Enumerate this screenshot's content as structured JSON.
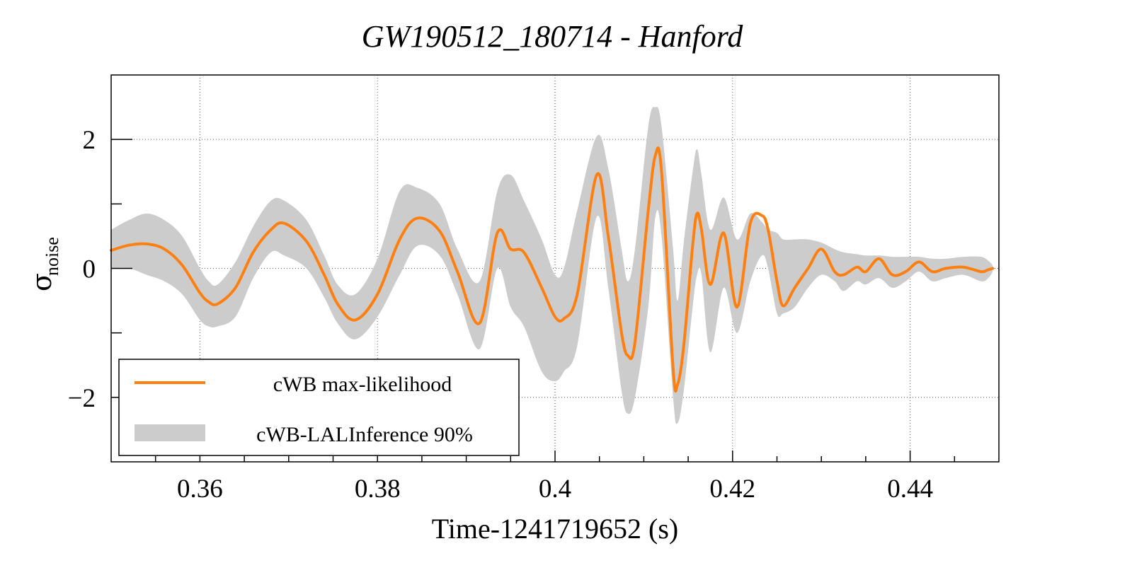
{
  "chart_data": {
    "type": "line",
    "title": "GW190512_180714 - Hanford",
    "xlabel": "Time-1241719652 (s)",
    "ylabel": "σ",
    "ylabel_sub": "noise",
    "xlim": [
      0.35,
      0.45
    ],
    "ylim": [
      -3,
      3
    ],
    "xticks": [
      0.36,
      0.38,
      0.4,
      0.42,
      0.44
    ],
    "xtick_labels": [
      "0.36",
      "0.38",
      "0.4",
      "0.42",
      "0.44"
    ],
    "yticks": [
      -2,
      0,
      2
    ],
    "ytick_labels": [
      "−2",
      "0",
      "2"
    ],
    "grid": true,
    "legend_position": "bottom-left",
    "colors": {
      "line": "#ff8010",
      "band": "#cccccc"
    },
    "series": [
      {
        "name": "cWB max-likelihood",
        "x": [
          0.35,
          0.352,
          0.354,
          0.356,
          0.358,
          0.36,
          0.361,
          0.362,
          0.364,
          0.366,
          0.368,
          0.3695,
          0.372,
          0.374,
          0.3755,
          0.3775,
          0.38,
          0.3825,
          0.3845,
          0.387,
          0.389,
          0.3915,
          0.3935,
          0.395,
          0.3965,
          0.3985,
          0.4,
          0.401,
          0.4025,
          0.4047,
          0.406,
          0.4075,
          0.4082,
          0.409,
          0.4105,
          0.4113,
          0.412,
          0.4133,
          0.4138,
          0.4145,
          0.4155,
          0.416,
          0.4165,
          0.4175,
          0.419,
          0.4205,
          0.422,
          0.4233,
          0.424,
          0.425,
          0.4257,
          0.427,
          0.4285,
          0.43,
          0.4315,
          0.4325,
          0.434,
          0.435,
          0.4365,
          0.438,
          0.4395,
          0.441,
          0.4425,
          0.444,
          0.446,
          0.448,
          0.4488,
          0.4493
        ],
        "values": [
          0.28,
          0.36,
          0.38,
          0.3,
          0.05,
          -0.38,
          -0.52,
          -0.55,
          -0.3,
          0.25,
          0.6,
          0.7,
          0.42,
          -0.1,
          -0.55,
          -0.8,
          -0.4,
          0.45,
          0.78,
          0.58,
          -0.05,
          -0.85,
          0.55,
          0.3,
          0.25,
          -0.3,
          -0.75,
          -0.78,
          -0.4,
          1.45,
          0.5,
          -1.0,
          -1.35,
          -1.15,
          0.9,
          1.75,
          1.5,
          -1.55,
          -1.8,
          -1.2,
          0.35,
          0.85,
          0.6,
          -0.25,
          0.55,
          -0.6,
          0.7,
          0.82,
          0.6,
          -0.2,
          -0.58,
          -0.3,
          0.0,
          0.3,
          -0.05,
          -0.1,
          0.02,
          -0.05,
          0.15,
          -0.1,
          -0.05,
          0.1,
          -0.05,
          0.0,
          0.02,
          -0.05,
          -0.02,
          0.0
        ]
      },
      {
        "name": "cWB-LALInference 90%",
        "type": "band",
        "x": [
          0.35,
          0.352,
          0.354,
          0.356,
          0.358,
          0.36,
          0.361,
          0.362,
          0.364,
          0.366,
          0.368,
          0.3695,
          0.372,
          0.374,
          0.3755,
          0.3775,
          0.38,
          0.3825,
          0.3845,
          0.387,
          0.389,
          0.3915,
          0.3935,
          0.395,
          0.3965,
          0.3985,
          0.4,
          0.401,
          0.4025,
          0.4047,
          0.406,
          0.4075,
          0.4082,
          0.409,
          0.4105,
          0.4113,
          0.412,
          0.4133,
          0.4138,
          0.4145,
          0.4155,
          0.416,
          0.4165,
          0.4175,
          0.419,
          0.4205,
          0.422,
          0.4233,
          0.424,
          0.425,
          0.4257,
          0.427,
          0.4285,
          0.43,
          0.4315,
          0.4325,
          0.434,
          0.435,
          0.4365,
          0.438,
          0.4395,
          0.441,
          0.4425,
          0.444,
          0.446,
          0.448,
          0.4488,
          0.4493
        ],
        "upper": [
          0.6,
          0.75,
          0.85,
          0.75,
          0.5,
          0.0,
          -0.2,
          -0.25,
          0.1,
          0.65,
          1.05,
          1.05,
          0.75,
          0.2,
          -0.25,
          -0.4,
          0.15,
          1.2,
          1.25,
          1.0,
          0.3,
          -0.2,
          1.2,
          1.45,
          1.05,
          0.45,
          -0.1,
          0.0,
          0.9,
          2.05,
          1.55,
          0.3,
          -0.2,
          0.3,
          2.2,
          2.5,
          2.2,
          0.3,
          -0.5,
          0.4,
          1.5,
          1.85,
          1.45,
          0.6,
          1.1,
          0.45,
          0.85,
          0.72,
          0.6,
          0.55,
          0.45,
          0.45,
          0.45,
          0.4,
          0.3,
          0.25,
          0.22,
          0.2,
          0.2,
          0.18,
          0.18,
          0.18,
          0.15,
          0.15,
          0.18,
          0.18,
          0.12,
          0.05
        ],
        "lower": [
          0.0,
          0.0,
          -0.1,
          -0.2,
          -0.4,
          -0.8,
          -0.9,
          -0.9,
          -0.75,
          -0.15,
          0.25,
          0.2,
          0.0,
          -0.45,
          -0.85,
          -1.1,
          -0.75,
          -0.1,
          0.35,
          0.2,
          -0.4,
          -1.25,
          0.0,
          -0.6,
          -0.9,
          -1.6,
          -1.75,
          -1.6,
          -1.2,
          0.8,
          -0.3,
          -1.9,
          -2.25,
          -2.0,
          -0.6,
          0.8,
          0.5,
          -2.0,
          -2.4,
          -1.9,
          -0.6,
          -0.1,
          -0.1,
          -1.3,
          -0.3,
          -1.0,
          -0.2,
          0.2,
          0.0,
          -0.7,
          -0.7,
          -0.6,
          -0.3,
          -0.1,
          -0.2,
          -0.35,
          -0.2,
          -0.25,
          -0.15,
          -0.3,
          -0.2,
          -0.05,
          -0.2,
          -0.15,
          -0.1,
          -0.2,
          -0.15,
          -0.05
        ]
      }
    ]
  }
}
